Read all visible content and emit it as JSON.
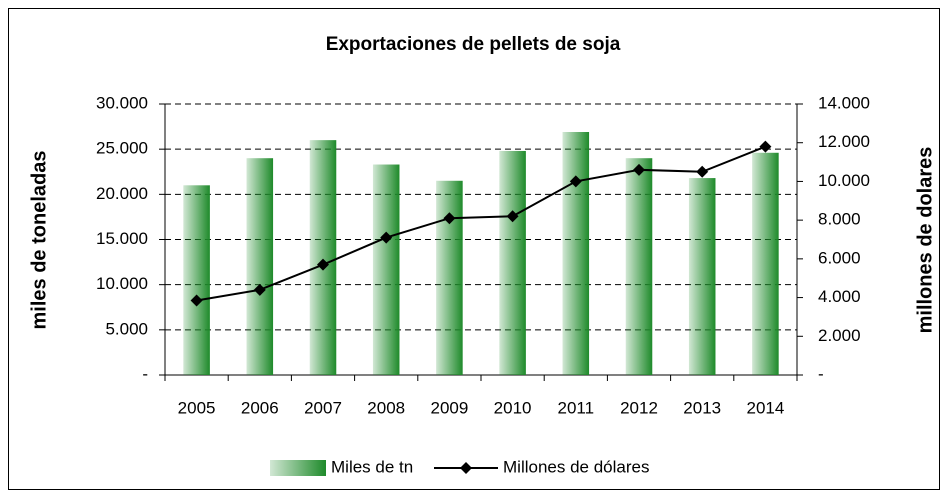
{
  "chart_data": {
    "type": "bar",
    "title": "Exportaciones de pellets de soja",
    "categories": [
      "2005",
      "2006",
      "2007",
      "2008",
      "2009",
      "2010",
      "2011",
      "2012",
      "2013",
      "2014"
    ],
    "series": [
      {
        "name": "Miles de tn",
        "color": "#1e8a2a",
        "values": [
          21000,
          24000,
          26000,
          23300,
          21500,
          24800,
          26900,
          24000,
          21800,
          24600
        ]
      },
      {
        "name": "Millones de dólares",
        "color": "#000000",
        "axis": "y2",
        "type": "line",
        "values": [
          3850,
          4400,
          5700,
          7100,
          8100,
          8200,
          10000,
          10600,
          10500,
          11800
        ]
      }
    ],
    "ylabel": "miles de toneladas",
    "y2label": "millones de dolares",
    "ylim": [
      0,
      30000
    ],
    "yticks": [
      {
        "value": 0,
        "label": "-"
      },
      {
        "value": 5000,
        "label": "5.000"
      },
      {
        "value": 10000,
        "label": "10.000"
      },
      {
        "value": 15000,
        "label": "15.000"
      },
      {
        "value": 20000,
        "label": "20.000"
      },
      {
        "value": 25000,
        "label": "25.000"
      },
      {
        "value": 30000,
        "label": "30.000"
      }
    ],
    "y2lim": [
      0,
      14000
    ],
    "y2ticks": [
      {
        "value": 0,
        "label": "-"
      },
      {
        "value": 2000,
        "label": "2.000"
      },
      {
        "value": 4000,
        "label": "4.000"
      },
      {
        "value": 6000,
        "label": "6.000"
      },
      {
        "value": 8000,
        "label": "8.000"
      },
      {
        "value": 10000,
        "label": "10.000"
      },
      {
        "value": 12000,
        "label": "12.000"
      },
      {
        "value": 14000,
        "label": "14.000"
      }
    ],
    "grid": true,
    "legend": "bottom"
  }
}
